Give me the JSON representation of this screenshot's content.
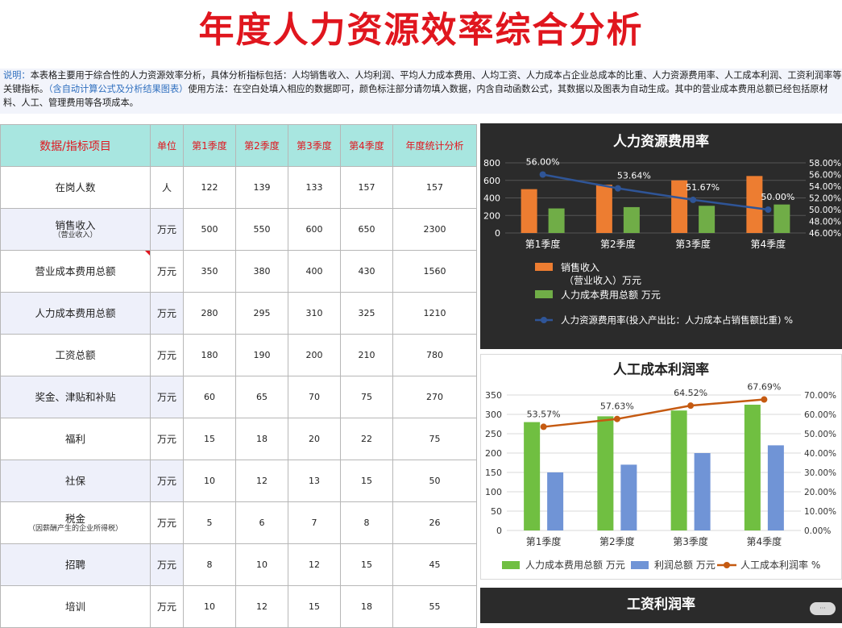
{
  "title": "年度人力资源效率综合分析",
  "description": {
    "label": "说明：",
    "text1": "本表格主要用于综合性的人力资源效率分析，具体分析指标包括：人均销售收入、人均利润、平均人力成本费用、人均工资、人力成本占企业总成本的比重、人力资源费用率、人工成本利润、工资利润率等关键指标。",
    "hint": "（含自动计算公式及分析结果图表）",
    "text2": "使用方法：在空白处填入相应的数据即可，颜色标注部分请勿填入数据，内含自动函数公式，其数据以及图表为自动生成。其中的营业成本费用总额已经包括原材料、人工、管理费用等各项成本。"
  },
  "table": {
    "headers": [
      "数据/指标项目",
      "单位",
      "第1季度",
      "第2季度",
      "第3季度",
      "第4季度",
      "年度统计分析"
    ],
    "rows": [
      {
        "name": "在岗人数",
        "sub": "",
        "unit": "人",
        "q1": "122",
        "q2": "139",
        "q3": "133",
        "q4": "157",
        "total": "157"
      },
      {
        "name": "销售收入",
        "sub": "（营业收入）",
        "unit": "万元",
        "q1": "500",
        "q2": "550",
        "q3": "600",
        "q4": "650",
        "total": "2300"
      },
      {
        "name": "营业成本费用总额",
        "sub": "",
        "unit": "万元",
        "q1": "350",
        "q2": "380",
        "q3": "400",
        "q4": "430",
        "total": "1560"
      },
      {
        "name": "人力成本费用总额",
        "sub": "",
        "unit": "万元",
        "q1": "280",
        "q2": "295",
        "q3": "310",
        "q4": "325",
        "total": "1210"
      },
      {
        "name": "工资总额",
        "sub": "",
        "unit": "万元",
        "q1": "180",
        "q2": "190",
        "q3": "200",
        "q4": "210",
        "total": "780"
      },
      {
        "name": "奖金、津贴和补贴",
        "sub": "",
        "unit": "万元",
        "q1": "60",
        "q2": "65",
        "q3": "70",
        "q4": "75",
        "total": "270"
      },
      {
        "name": "福利",
        "sub": "",
        "unit": "万元",
        "q1": "15",
        "q2": "18",
        "q3": "20",
        "q4": "22",
        "total": "75"
      },
      {
        "name": "社保",
        "sub": "",
        "unit": "万元",
        "q1": "10",
        "q2": "12",
        "q3": "13",
        "q4": "15",
        "total": "50"
      },
      {
        "name": "税金",
        "sub": "（因薪酬产生的企业所得税）",
        "unit": "万元",
        "q1": "5",
        "q2": "6",
        "q3": "7",
        "q4": "8",
        "total": "26"
      },
      {
        "name": "招聘",
        "sub": "",
        "unit": "万元",
        "q1": "8",
        "q2": "10",
        "q3": "12",
        "q4": "15",
        "total": "45"
      },
      {
        "name": "培训",
        "sub": "",
        "unit": "万元",
        "q1": "10",
        "q2": "12",
        "q3": "15",
        "q4": "18",
        "total": "55"
      }
    ]
  },
  "chart_data": [
    {
      "type": "bar",
      "title": "人力资源费用率",
      "categories": [
        "第1季度",
        "第2季度",
        "第3季度",
        "第4季度"
      ],
      "series": [
        {
          "name": "销售收入",
          "name_sub": "（营业收入）万元",
          "kind": "bar",
          "axis": "left",
          "color": "#ed7d31",
          "values": [
            500,
            550,
            600,
            650
          ]
        },
        {
          "name": "人力成本费用总额 万元",
          "kind": "bar",
          "axis": "left",
          "color": "#70ad47",
          "values": [
            280,
            295,
            310,
            325
          ]
        },
        {
          "name": "人力资源费用率(投入产出比：人力成本占销售额比重) %",
          "kind": "line",
          "axis": "right",
          "color": "#2f5597",
          "values": [
            56.0,
            53.64,
            51.67,
            50.0
          ],
          "labels": [
            "56.00%",
            "53.64%",
            "51.67%",
            "50.00%"
          ]
        }
      ],
      "y_left": {
        "min": 0,
        "max": 800,
        "ticks": [
          "0",
          "200",
          "400",
          "600",
          "800"
        ]
      },
      "y_right": {
        "min": 46,
        "max": 58,
        "ticks": [
          "46.00%",
          "48.00%",
          "50.00%",
          "52.00%",
          "54.00%",
          "56.00%",
          "58.00%"
        ]
      },
      "legend": "bottom",
      "grid": true
    },
    {
      "type": "bar",
      "title": "人工成本利润率",
      "categories": [
        "第1季度",
        "第2季度",
        "第3季度",
        "第4季度"
      ],
      "series": [
        {
          "name": "人力成本费用总额 万元",
          "kind": "bar",
          "axis": "left",
          "color": "#70bf41",
          "values": [
            280,
            295,
            310,
            325
          ]
        },
        {
          "name": "利润总额 万元",
          "kind": "bar",
          "axis": "left",
          "color": "#7094d6",
          "values": [
            150,
            170,
            200,
            220
          ]
        },
        {
          "name": "人工成本利润率 %",
          "kind": "line",
          "axis": "right",
          "color": "#c55a11",
          "values": [
            53.57,
            57.63,
            64.52,
            67.69
          ],
          "labels": [
            "53.57%",
            "57.63%",
            "64.52%",
            "67.69%"
          ]
        }
      ],
      "y_left": {
        "min": 0,
        "max": 350,
        "ticks": [
          "0",
          "50",
          "100",
          "150",
          "200",
          "250",
          "300",
          "350"
        ]
      },
      "y_right": {
        "min": 0,
        "max": 70,
        "ticks": [
          "0.00%",
          "10.00%",
          "20.00%",
          "30.00%",
          "40.00%",
          "50.00%",
          "60.00%",
          "70.00%"
        ]
      },
      "legend": "bottom",
      "grid": true
    }
  ],
  "chart3": {
    "title": "工资利润率"
  },
  "colors": {
    "title_red": "#e0161e",
    "header_bg": "#a8e6e0",
    "chart_dark": "#2b2b2b",
    "accent_blue": "#2f6fbf"
  }
}
